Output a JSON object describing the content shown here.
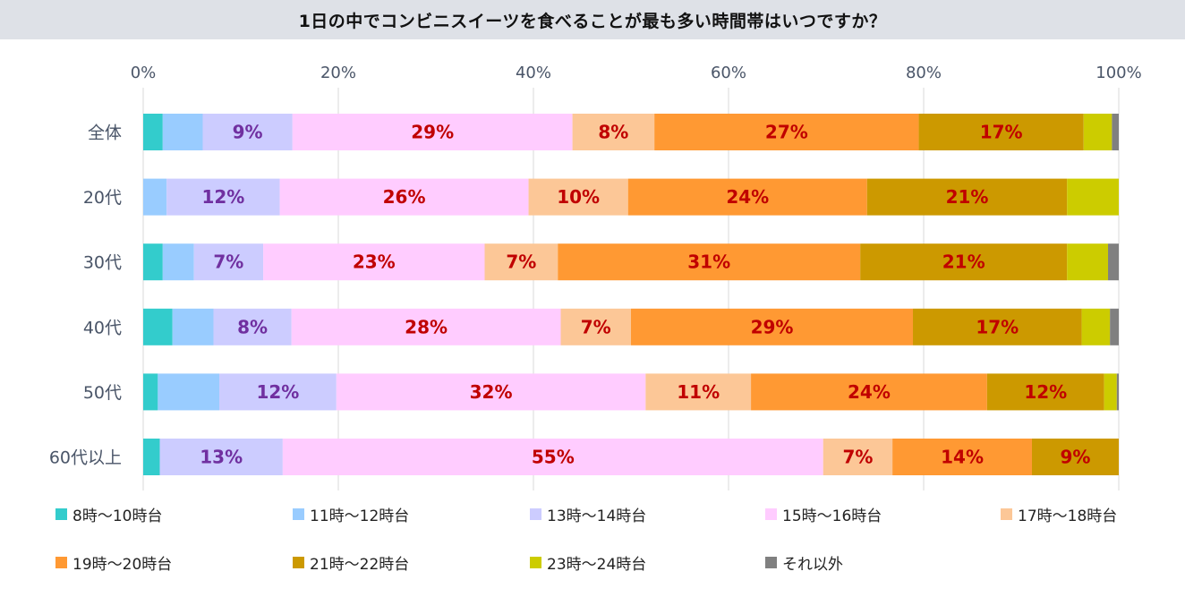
{
  "chart_data": {
    "type": "bar",
    "orientation": "horizontal",
    "stacked": true,
    "title": "1日の中でコンビニスイーツを食べることが最も多い時間帯はいつですか？",
    "x_ticks": [
      "0%",
      "20%",
      "40%",
      "60%",
      "80%",
      "100%"
    ],
    "xlim": [
      0,
      100
    ],
    "grid": "vertical",
    "legend_position": "bottom",
    "categories": [
      "全体",
      "20代",
      "30代",
      "40代",
      "50代",
      "60代以上"
    ],
    "series": [
      {
        "name": "8時～10時台",
        "color": "#33cccc",
        "label_color": "#7030a0",
        "values": [
          2,
          0,
          2,
          3,
          1.5,
          1.7
        ],
        "labels": [
          "",
          "",
          "",
          "",
          "",
          ""
        ]
      },
      {
        "name": "11時～12時台",
        "color": "#99ccff",
        "label_color": "#7030a0",
        "values": [
          4.1,
          2.4,
          3.2,
          4.2,
          6.3,
          0
        ],
        "labels": [
          "",
          "",
          "",
          "",
          "",
          ""
        ]
      },
      {
        "name": "13時～14時台",
        "color": "#ccccff",
        "label_color": "#7030a0",
        "values": [
          9.2,
          11.6,
          7.1,
          8,
          12,
          12.6
        ],
        "labels": [
          "9%",
          "12%",
          "7%",
          "8%",
          "12%",
          "13%"
        ]
      },
      {
        "name": "15時～16時台",
        "color": "#ffccff",
        "label_color": "#c00000",
        "values": [
          28.7,
          25.5,
          22.7,
          27.6,
          31.7,
          55.4
        ],
        "labels": [
          "29%",
          "26%",
          "23%",
          "28%",
          "32%",
          "55%"
        ]
      },
      {
        "name": "17時～18時台",
        "color": "#fcc797",
        "label_color": "#c00000",
        "values": [
          8.4,
          10.2,
          7.5,
          7.2,
          10.8,
          7.1
        ],
        "labels": [
          "8%",
          "10%",
          "7%",
          "7%",
          "11%",
          "7%"
        ]
      },
      {
        "name": "19時～20時台",
        "color": "#ff9933",
        "label_color": "#c00000",
        "values": [
          27.1,
          24.5,
          31,
          28.9,
          24.2,
          14.3
        ],
        "labels": [
          "27%",
          "24%",
          "31%",
          "29%",
          "24%",
          "14%"
        ]
      },
      {
        "name": "21時～22時台",
        "color": "#cc9900",
        "label_color": "#c00000",
        "values": [
          16.9,
          20.5,
          21.2,
          17.3,
          12,
          8.9
        ],
        "labels": [
          "17%",
          "21%",
          "21%",
          "17%",
          "12%",
          "9%"
        ]
      },
      {
        "name": "23時～24時台",
        "color": "#cccc00",
        "label_color": "#c00000",
        "values": [
          2.9,
          5.3,
          4.2,
          2.9,
          1.3,
          0
        ],
        "labels": [
          "",
          "",
          "",
          "",
          "",
          ""
        ]
      },
      {
        "name": "それ以外",
        "color": "#808080",
        "label_color": "#c00000",
        "values": [
          0.7,
          0,
          1.1,
          0.9,
          0.2,
          0
        ],
        "labels": [
          "",
          "",
          "",
          "",
          "",
          ""
        ]
      }
    ]
  }
}
